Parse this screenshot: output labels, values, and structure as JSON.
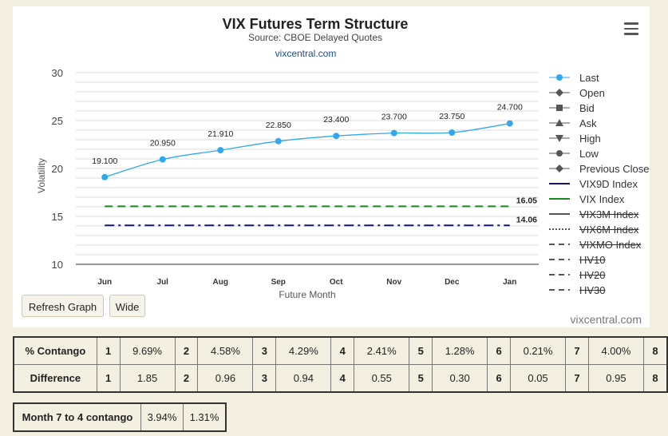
{
  "chart": {
    "title": "VIX Futures Term Structure",
    "subtitle": "Source: CBOE Delayed Quotes",
    "link": "vixcentral.com",
    "credits": "vixcentral.com",
    "buttons": {
      "refresh": "Refresh Graph",
      "wide": "Wide"
    }
  },
  "legend": [
    {
      "label": "Last",
      "symbol": "circle",
      "color": "#2fa8ef",
      "hidden": false
    },
    {
      "label": "Open",
      "symbol": "diamond",
      "color": "#555555",
      "hidden": false
    },
    {
      "label": "Bid",
      "symbol": "square",
      "color": "#555555",
      "hidden": false
    },
    {
      "label": "Ask",
      "symbol": "triangle",
      "color": "#555555",
      "hidden": false
    },
    {
      "label": "High",
      "symbol": "triangle-down",
      "color": "#555555",
      "hidden": false
    },
    {
      "label": "Low",
      "symbol": "circle",
      "color": "#555555",
      "hidden": false
    },
    {
      "label": "Previous Close",
      "symbol": "diamond",
      "color": "#555555",
      "hidden": false
    },
    {
      "label": "VIX9D Index",
      "symbol": "line",
      "color": "#13137a",
      "hidden": false
    },
    {
      "label": "VIX Index",
      "symbol": "line",
      "color": "#1a8a1a",
      "hidden": false
    },
    {
      "label": "VIX3M Index",
      "symbol": "line",
      "color": "#555555",
      "hidden": true
    },
    {
      "label": "VIX6M Index",
      "symbol": "dotted",
      "color": "#555555",
      "hidden": true
    },
    {
      "label": "VIXMO Index",
      "symbol": "dashed",
      "color": "#555555",
      "hidden": true
    },
    {
      "label": "HV10",
      "symbol": "dashed",
      "color": "#555555",
      "hidden": true
    },
    {
      "label": "HV20",
      "symbol": "dashed",
      "color": "#555555",
      "hidden": true
    },
    {
      "label": "HV30",
      "symbol": "dashed",
      "color": "#555555",
      "hidden": true
    }
  ],
  "chart_data": {
    "type": "line",
    "title": "VIX Futures Term Structure",
    "subtitle": "Source: CBOE Delayed Quotes",
    "xlabel": "Future Month",
    "ylabel": "Volatility",
    "categories": [
      "Jun",
      "Jul",
      "Aug",
      "Sep",
      "Oct",
      "Nov",
      "Dec",
      "Jan"
    ],
    "ylim": [
      10,
      30
    ],
    "yticks": [
      10,
      15,
      20,
      25,
      30
    ],
    "grid": true,
    "legend_position": "right",
    "series": [
      {
        "name": "Last",
        "color": "#2fa8ef",
        "style": "spline",
        "values": [
          19.1,
          20.95,
          21.91,
          22.85,
          23.4,
          23.7,
          23.75,
          24.7
        ],
        "labels": [
          "19.100",
          "20.950",
          "21.910",
          "22.850",
          "23.400",
          "23.700",
          "23.750",
          "24.700"
        ]
      },
      {
        "name": "VIX Index",
        "color": "#1a8a1a",
        "style": "dashed",
        "values": [
          16.05,
          16.05,
          16.05,
          16.05,
          16.05,
          16.05,
          16.05,
          16.05
        ],
        "end_label": "16.05"
      },
      {
        "name": "VIX9D Index",
        "color": "#13137a",
        "style": "dashdot",
        "values": [
          14.06,
          14.06,
          14.06,
          14.06,
          14.06,
          14.06,
          14.06,
          14.06
        ],
        "end_label": "14.06"
      }
    ]
  },
  "table1": {
    "rows": [
      {
        "label": "% Contango",
        "cells": [
          [
            "1",
            "9.69%"
          ],
          [
            "2",
            "4.58%"
          ],
          [
            "3",
            "4.29%"
          ],
          [
            "4",
            "2.41%"
          ],
          [
            "5",
            "1.28%"
          ],
          [
            "6",
            "0.21%"
          ],
          [
            "7",
            "4.00%"
          ],
          [
            "8",
            ""
          ]
        ]
      },
      {
        "label": "Difference",
        "cells": [
          [
            "1",
            "1.85"
          ],
          [
            "2",
            "0.96"
          ],
          [
            "3",
            "0.94"
          ],
          [
            "4",
            "0.55"
          ],
          [
            "5",
            "0.30"
          ],
          [
            "6",
            "0.05"
          ],
          [
            "7",
            "0.95"
          ],
          [
            "8",
            ""
          ]
        ]
      }
    ]
  },
  "table2": {
    "label": "Month 7 to 4 contango",
    "v1": "3.94%",
    "v2": "1.31%"
  }
}
